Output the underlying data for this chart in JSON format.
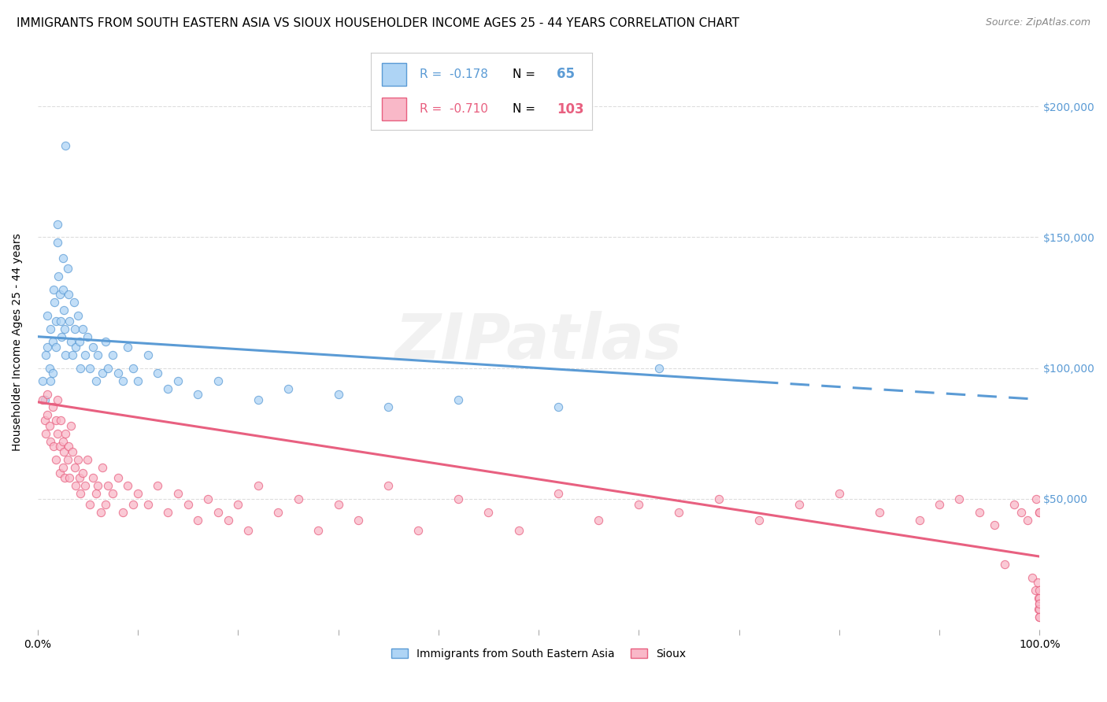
{
  "title": "IMMIGRANTS FROM SOUTH EASTERN ASIA VS SIOUX HOUSEHOLDER INCOME AGES 25 - 44 YEARS CORRELATION CHART",
  "source": "Source: ZipAtlas.com",
  "ylabel": "Householder Income Ages 25 - 44 years",
  "ytick_labels": [
    "$50,000",
    "$100,000",
    "$150,000",
    "$200,000"
  ],
  "ytick_values": [
    50000,
    100000,
    150000,
    200000
  ],
  "ylim": [
    0,
    220000
  ],
  "xlim": [
    0.0,
    1.0
  ],
  "legend_blue_r": "-0.178",
  "legend_blue_n": "65",
  "legend_pink_r": "-0.710",
  "legend_pink_n": "103",
  "legend_label_blue": "Immigrants from South Eastern Asia",
  "legend_label_pink": "Sioux",
  "blue_fill_color": "#AED4F5",
  "blue_edge_color": "#5B9BD5",
  "pink_fill_color": "#F9B8C8",
  "pink_edge_color": "#E86080",
  "blue_scatter_x": [
    0.005,
    0.007,
    0.008,
    0.01,
    0.01,
    0.012,
    0.013,
    0.013,
    0.015,
    0.015,
    0.016,
    0.017,
    0.018,
    0.018,
    0.02,
    0.02,
    0.021,
    0.022,
    0.023,
    0.024,
    0.025,
    0.025,
    0.026,
    0.027,
    0.028,
    0.03,
    0.031,
    0.032,
    0.033,
    0.035,
    0.036,
    0.037,
    0.038,
    0.04,
    0.042,
    0.043,
    0.045,
    0.047,
    0.05,
    0.052,
    0.055,
    0.058,
    0.06,
    0.065,
    0.068,
    0.07,
    0.075,
    0.08,
    0.085,
    0.09,
    0.095,
    0.1,
    0.11,
    0.12,
    0.13,
    0.14,
    0.16,
    0.18,
    0.22,
    0.25,
    0.3,
    0.35,
    0.42,
    0.52,
    0.62
  ],
  "blue_scatter_y": [
    95000,
    88000,
    105000,
    120000,
    108000,
    100000,
    115000,
    95000,
    110000,
    98000,
    130000,
    125000,
    118000,
    108000,
    155000,
    148000,
    135000,
    128000,
    118000,
    112000,
    142000,
    130000,
    122000,
    115000,
    105000,
    138000,
    128000,
    118000,
    110000,
    105000,
    125000,
    115000,
    108000,
    120000,
    110000,
    100000,
    115000,
    105000,
    112000,
    100000,
    108000,
    95000,
    105000,
    98000,
    110000,
    100000,
    105000,
    98000,
    95000,
    108000,
    100000,
    95000,
    105000,
    98000,
    92000,
    95000,
    90000,
    95000,
    88000,
    92000,
    90000,
    85000,
    88000,
    85000,
    100000
  ],
  "blue_outlier_x": [
    0.028
  ],
  "blue_outlier_y": [
    185000
  ],
  "pink_scatter_x": [
    0.005,
    0.007,
    0.008,
    0.01,
    0.01,
    0.012,
    0.013,
    0.015,
    0.016,
    0.018,
    0.018,
    0.02,
    0.02,
    0.022,
    0.022,
    0.023,
    0.025,
    0.025,
    0.026,
    0.027,
    0.028,
    0.03,
    0.031,
    0.032,
    0.033,
    0.035,
    0.037,
    0.038,
    0.04,
    0.042,
    0.043,
    0.045,
    0.047,
    0.05,
    0.052,
    0.055,
    0.058,
    0.06,
    0.063,
    0.065,
    0.068,
    0.07,
    0.075,
    0.08,
    0.085,
    0.09,
    0.095,
    0.1,
    0.11,
    0.12,
    0.13,
    0.14,
    0.15,
    0.16,
    0.17,
    0.18,
    0.19,
    0.2,
    0.21,
    0.22,
    0.24,
    0.26,
    0.28,
    0.3,
    0.32,
    0.35,
    0.38,
    0.42,
    0.45,
    0.48,
    0.52,
    0.56,
    0.6,
    0.64,
    0.68,
    0.72,
    0.76,
    0.8,
    0.84,
    0.88,
    0.9,
    0.92,
    0.94,
    0.955,
    0.965,
    0.975,
    0.982,
    0.988,
    0.993,
    0.996,
    0.997,
    0.998,
    0.999,
    0.999,
    0.9995,
    0.9995,
    0.9998,
    0.9998,
    0.9999,
    0.9999,
    0.99995,
    0.99995,
    0.99998
  ],
  "pink_scatter_y": [
    88000,
    80000,
    75000,
    90000,
    82000,
    78000,
    72000,
    85000,
    70000,
    80000,
    65000,
    88000,
    75000,
    70000,
    60000,
    80000,
    72000,
    62000,
    68000,
    58000,
    75000,
    65000,
    70000,
    58000,
    78000,
    68000,
    62000,
    55000,
    65000,
    58000,
    52000,
    60000,
    55000,
    65000,
    48000,
    58000,
    52000,
    55000,
    45000,
    62000,
    48000,
    55000,
    52000,
    58000,
    45000,
    55000,
    48000,
    52000,
    48000,
    55000,
    45000,
    52000,
    48000,
    42000,
    50000,
    45000,
    42000,
    48000,
    38000,
    55000,
    45000,
    50000,
    38000,
    48000,
    42000,
    55000,
    38000,
    50000,
    45000,
    38000,
    52000,
    42000,
    48000,
    45000,
    50000,
    42000,
    48000,
    52000,
    45000,
    42000,
    48000,
    50000,
    45000,
    40000,
    25000,
    48000,
    45000,
    42000,
    20000,
    15000,
    50000,
    18000,
    12000,
    8000,
    45000,
    10000,
    15000,
    8000,
    12000,
    5000,
    45000,
    10000,
    5000
  ],
  "blue_line_x0": 0.0,
  "blue_line_x1": 1.0,
  "blue_line_y0": 112000,
  "blue_line_y1": 88000,
  "blue_line_solid_end": 0.72,
  "pink_line_x0": 0.0,
  "pink_line_x1": 1.0,
  "pink_line_y0": 87000,
  "pink_line_y1": 28000,
  "bg_color": "#FFFFFF",
  "grid_color": "#DDDDDD",
  "title_fontsize": 11,
  "axis_label_fontsize": 10,
  "tick_fontsize": 10,
  "source_fontsize": 9,
  "scatter_size": 55,
  "scatter_alpha": 0.75,
  "line_width": 2.2
}
